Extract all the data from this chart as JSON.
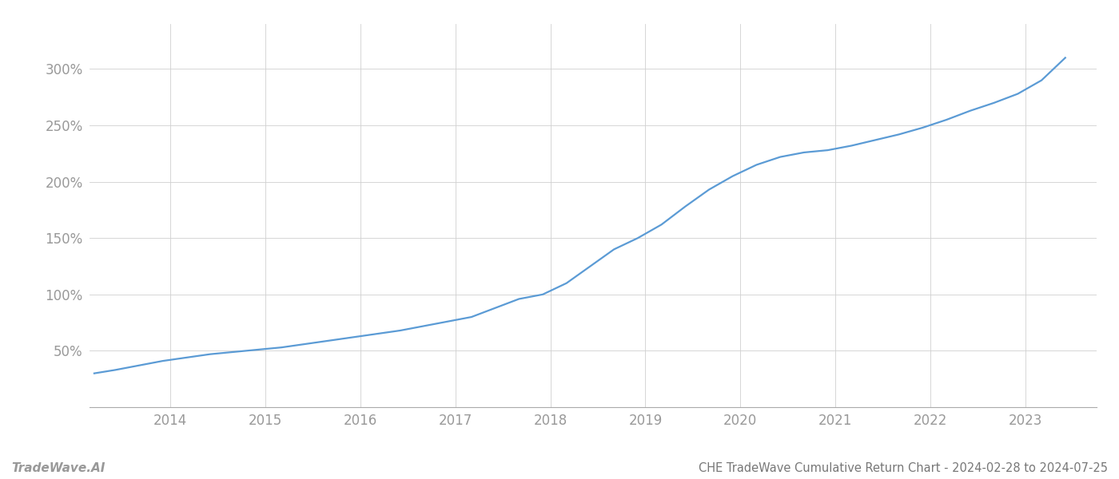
{
  "title": "CHE TradeWave Cumulative Return Chart - 2024-02-28 to 2024-07-25",
  "watermark": "TradeWave.AI",
  "line_color": "#5b9bd5",
  "background_color": "#ffffff",
  "grid_color": "#d0d0d0",
  "x_years": [
    2014,
    2015,
    2016,
    2017,
    2018,
    2019,
    2020,
    2021,
    2022,
    2023
  ],
  "x_data": [
    2013.2,
    2013.42,
    2013.67,
    2013.92,
    2014.17,
    2014.42,
    2014.67,
    2014.92,
    2015.17,
    2015.42,
    2015.67,
    2015.92,
    2016.17,
    2016.42,
    2016.67,
    2016.92,
    2017.17,
    2017.42,
    2017.67,
    2017.92,
    2018.17,
    2018.42,
    2018.67,
    2018.92,
    2019.17,
    2019.42,
    2019.67,
    2019.92,
    2020.17,
    2020.42,
    2020.67,
    2020.92,
    2021.17,
    2021.42,
    2021.67,
    2021.92,
    2022.17,
    2022.42,
    2022.67,
    2022.92,
    2023.17,
    2023.42
  ],
  "y_data": [
    30,
    33,
    37,
    41,
    44,
    47,
    49,
    51,
    53,
    56,
    59,
    62,
    65,
    68,
    72,
    76,
    80,
    88,
    96,
    100,
    110,
    125,
    140,
    150,
    162,
    178,
    193,
    205,
    215,
    222,
    226,
    228,
    232,
    237,
    242,
    248,
    255,
    263,
    270,
    278,
    290,
    310
  ],
  "ylim": [
    0,
    340
  ],
  "yticks": [
    50,
    100,
    150,
    200,
    250,
    300
  ],
  "xlim": [
    2013.15,
    2023.75
  ],
  "title_fontsize": 10.5,
  "watermark_fontsize": 11,
  "tick_fontsize": 12,
  "axis_label_color": "#999999",
  "title_color": "#777777",
  "line_width": 1.6
}
